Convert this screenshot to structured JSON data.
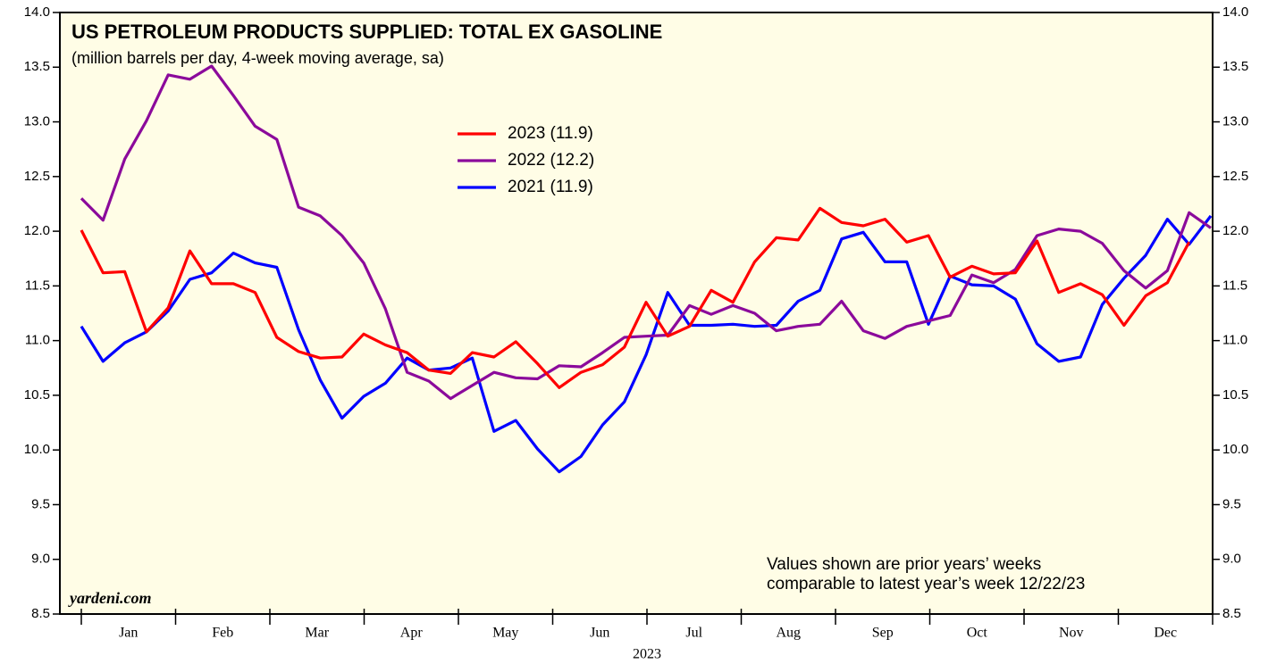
{
  "chart_data": {
    "type": "line",
    "title": "US PETROLEUM PRODUCTS SUPPLIED: TOTAL EX GASOLINE",
    "subtitle": "(million barrels per day, 4-week moving average, sa)",
    "xlabel": "2023",
    "xtick_labels": [
      "Jan",
      "Feb",
      "Mar",
      "Apr",
      "May",
      "Jun",
      "Jul",
      "Aug",
      "Sep",
      "Oct",
      "Nov",
      "Dec"
    ],
    "annotation": [
      "Values shown are prior years’ weeks",
      "comparable to latest year’s week 12/22/23"
    ],
    "source": "yardeni.com",
    "ylim": [
      8.5,
      14.0
    ],
    "yticks": [
      {
        "value": 8.5,
        "label": "8.5"
      },
      {
        "value": 9,
        "label": "9.0"
      },
      {
        "value": 9.5,
        "label": "9.5"
      },
      {
        "value": 10,
        "label": "10.0"
      },
      {
        "value": 10.5,
        "label": "10.5"
      },
      {
        "value": 11,
        "label": "11.0"
      },
      {
        "value": 11.5,
        "label": "11.5"
      },
      {
        "value": 12,
        "label": "12.0"
      },
      {
        "value": 12.5,
        "label": "12.5"
      },
      {
        "value": 13,
        "label": "13.0"
      },
      {
        "value": 13.5,
        "label": "13.5"
      },
      {
        "value": 14,
        "label": "14.0"
      }
    ],
    "background": "#fffde6",
    "series": [
      {
        "name": "2023 (11.9)",
        "color": "#ff0000",
        "values": [
          12.01,
          11.62,
          11.63,
          11.08,
          11.3,
          11.82,
          11.52,
          11.52,
          11.44,
          11.03,
          10.9,
          10.84,
          10.85,
          11.06,
          10.96,
          10.89,
          10.73,
          10.7,
          10.89,
          10.85,
          10.99,
          10.79,
          10.57,
          10.71,
          10.78,
          10.94,
          11.35,
          11.04,
          11.13,
          11.46,
          11.35,
          11.72,
          11.94,
          11.92,
          12.21,
          12.08,
          12.05,
          12.11,
          11.9,
          11.96,
          11.58,
          11.68,
          11.61,
          11.62,
          11.91,
          11.44,
          11.52,
          11.42,
          11.14,
          11.41,
          11.53,
          11.9,
          null
        ]
      },
      {
        "name": "2022 (12.2)",
        "color": "#8b0a9b",
        "values": [
          12.3,
          12.1,
          12.66,
          13.01,
          13.43,
          13.39,
          13.51,
          13.24,
          12.96,
          12.84,
          12.22,
          12.14,
          11.96,
          11.71,
          11.29,
          10.71,
          10.63,
          10.47,
          10.59,
          10.71,
          10.66,
          10.65,
          10.77,
          10.76,
          10.89,
          11.03,
          11.04,
          11.05,
          11.32,
          11.24,
          11.32,
          11.25,
          11.09,
          11.13,
          11.15,
          11.36,
          11.09,
          11.02,
          11.13,
          11.18,
          11.23,
          11.6,
          11.53,
          11.65,
          11.96,
          12.02,
          12.0,
          11.89,
          11.64,
          11.48,
          11.64,
          12.17,
          12.03
        ]
      },
      {
        "name": "2021 (11.9)",
        "color": "#0000ff",
        "values": [
          11.13,
          10.81,
          10.98,
          11.08,
          11.27,
          11.56,
          11.62,
          11.8,
          11.71,
          11.67,
          11.1,
          10.64,
          10.29,
          10.49,
          10.61,
          10.84,
          10.73,
          10.75,
          10.84,
          10.17,
          10.27,
          10.01,
          9.8,
          9.94,
          10.23,
          10.44,
          10.87,
          11.44,
          11.14,
          11.14,
          11.15,
          11.13,
          11.14,
          11.36,
          11.46,
          11.93,
          11.99,
          11.72,
          11.72,
          11.15,
          11.59,
          11.51,
          11.5,
          11.38,
          10.97,
          10.81,
          10.85,
          11.33,
          11.57,
          11.78,
          12.11,
          11.88,
          12.14
        ]
      }
    ]
  }
}
